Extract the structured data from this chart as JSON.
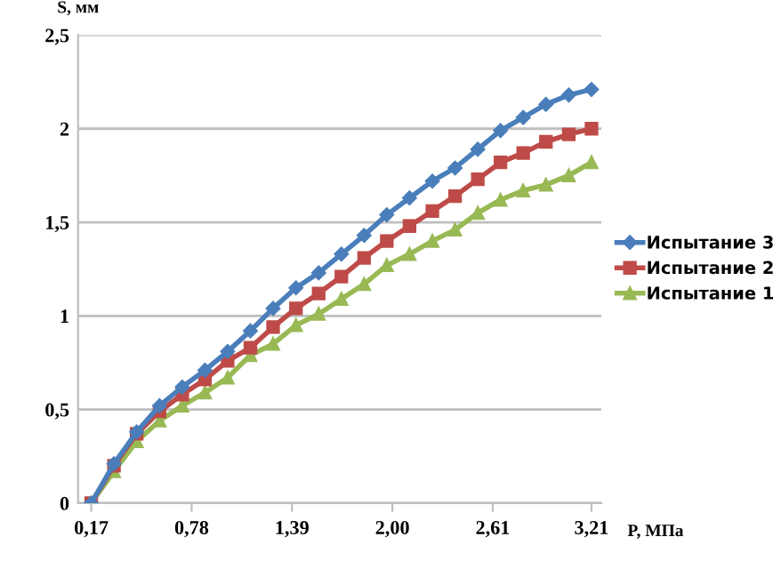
{
  "chart_data": {
    "type": "line",
    "xlabel": "P, МПа",
    "ylabel": "S, мм",
    "x": [
      0.17,
      0.308,
      0.446,
      0.585,
      0.723,
      0.861,
      0.999,
      1.137,
      1.275,
      1.414,
      1.552,
      1.69,
      1.828,
      1.966,
      2.104,
      2.243,
      2.381,
      2.519,
      2.657,
      2.795,
      2.933,
      3.072,
      3.21
    ],
    "series": [
      {
        "name": "Испытание 3",
        "color": "#4a7ebb",
        "marker": "diamond",
        "values": [
          0,
          0.21,
          0.38,
          0.52,
          0.62,
          0.71,
          0.81,
          0.92,
          1.04,
          1.15,
          1.23,
          1.33,
          1.43,
          1.54,
          1.63,
          1.72,
          1.79,
          1.89,
          1.99,
          2.06,
          2.13,
          2.18,
          2.21
        ]
      },
      {
        "name": "Испытание 2",
        "color": "#be4b48",
        "marker": "square",
        "values": [
          0,
          0.2,
          0.37,
          0.49,
          0.58,
          0.66,
          0.76,
          0.83,
          0.94,
          1.04,
          1.12,
          1.21,
          1.31,
          1.4,
          1.48,
          1.56,
          1.64,
          1.73,
          1.82,
          1.87,
          1.93,
          1.97,
          2.0
        ]
      },
      {
        "name": "Испытание 1",
        "color": "#98b954",
        "marker": "triangle",
        "values": [
          0,
          0.17,
          0.33,
          0.44,
          0.52,
          0.59,
          0.67,
          0.79,
          0.85,
          0.95,
          1.01,
          1.09,
          1.17,
          1.27,
          1.33,
          1.4,
          1.46,
          1.55,
          1.62,
          1.67,
          1.7,
          1.75,
          1.82
        ]
      }
    ],
    "xlim": [
      0.09,
      3.27
    ],
    "xticks": [
      {
        "value": 0.17,
        "label": "0,17"
      },
      {
        "value": 0.78,
        "label": "0,78"
      },
      {
        "value": 1.39,
        "label": "1,39"
      },
      {
        "value": 2.0,
        "label": "2,00"
      },
      {
        "value": 2.61,
        "label": "2,61"
      },
      {
        "value": 3.21,
        "label": "3,21"
      }
    ],
    "ylim": [
      0,
      2.5
    ],
    "yticks": [
      0,
      {
        "value": 0.5,
        "label": "0,5"
      },
      1,
      {
        "value": 1.5,
        "label": "1,5"
      },
      2,
      {
        "value": 2.5,
        "label": "2,5"
      }
    ],
    "grid": "y",
    "legend": "right",
    "line_style": "solid"
  }
}
